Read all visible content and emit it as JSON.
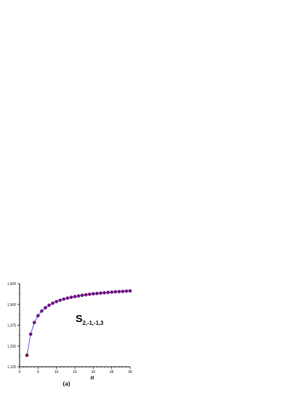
{
  "chart_data": {
    "type": "line",
    "title": "",
    "xlabel": "n",
    "ylabel": "",
    "xlim": [
      0,
      30
    ],
    "ylim": [
      1.125,
      1.625
    ],
    "grid": false,
    "x_ticks": [
      0,
      5,
      10,
      15,
      20,
      25,
      30
    ],
    "x_tick_labels": [
      "0",
      "5",
      "10",
      "15",
      "20",
      "25",
      "30"
    ],
    "y_ticks": [
      1.125,
      1.25,
      1.375,
      1.5,
      1.625
    ],
    "y_tick_labels": [
      "1,125",
      "1,250",
      "1,375",
      "1,500",
      "1,625"
    ],
    "annotation": {
      "main": "S",
      "subscript": "2,-1,-1,3"
    },
    "caption": "(a)",
    "colors": {
      "line": "#3a3aff",
      "marker": "#7a0a8a",
      "first_marker": "#8b1a1a"
    },
    "series": [
      {
        "x": [
          2,
          3,
          4,
          5,
          6,
          7,
          8,
          9,
          10,
          11,
          12,
          13,
          14,
          15,
          16,
          17,
          18,
          19,
          20,
          21,
          22,
          23,
          24,
          25,
          26,
          27,
          28,
          29,
          30
        ],
        "values": [
          1.194,
          1.321,
          1.391,
          1.432,
          1.46,
          1.48,
          1.495,
          1.507,
          1.517,
          1.525,
          1.532,
          1.538,
          1.543,
          1.547,
          1.551,
          1.555,
          1.558,
          1.561,
          1.564,
          1.566,
          1.568,
          1.57,
          1.572,
          1.574,
          1.576,
          1.577,
          1.578,
          1.58,
          1.581
        ]
      }
    ]
  }
}
